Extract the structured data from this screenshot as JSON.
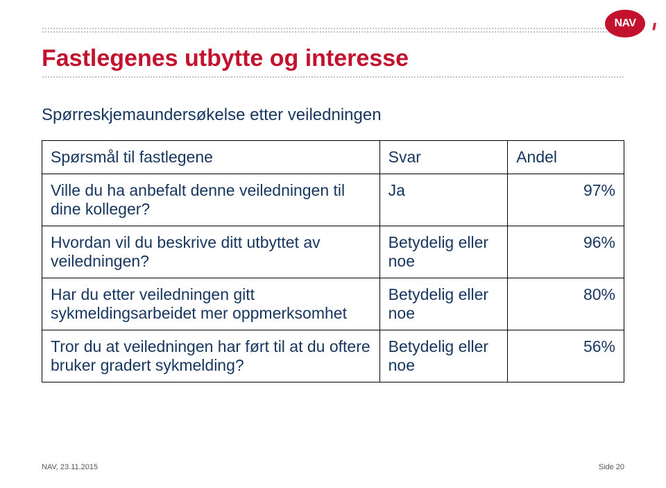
{
  "logo": {
    "text": "NAV",
    "bg": "#c3122e"
  },
  "title": {
    "text": "Fastlegenes utbytte og interesse",
    "color": "#c3122e"
  },
  "subtitle": {
    "text": "Spørreskjemaundersøkelse etter veiledningen",
    "color": "#17365d"
  },
  "table": {
    "header": {
      "q": "Spørsmål til fastlegene",
      "svar": "Svar",
      "andel": "Andel"
    },
    "header_color": "#17365d",
    "body_color": "#17365d",
    "rows": [
      {
        "q": "Ville du ha anbefalt denne veiledningen til dine kolleger?",
        "svar": "Ja",
        "andel": "97%"
      },
      {
        "q": "Hvordan vil du beskrive ditt utbyttet av veiledningen?",
        "svar": "Betydelig eller noe",
        "andel": "96%"
      },
      {
        "q": "Har du etter veiledningen gitt sykmeldingsarbeidet mer oppmerksomhet",
        "svar": "Betydelig eller noe",
        "andel": "80%"
      },
      {
        "q": "Tror du at veiledningen har ført til at du oftere bruker gradert sykmelding?",
        "svar": "Betydelig eller noe",
        "andel": "56%"
      }
    ]
  },
  "footer": {
    "left": "NAV, 23.11.2015",
    "right": "Side 20"
  }
}
